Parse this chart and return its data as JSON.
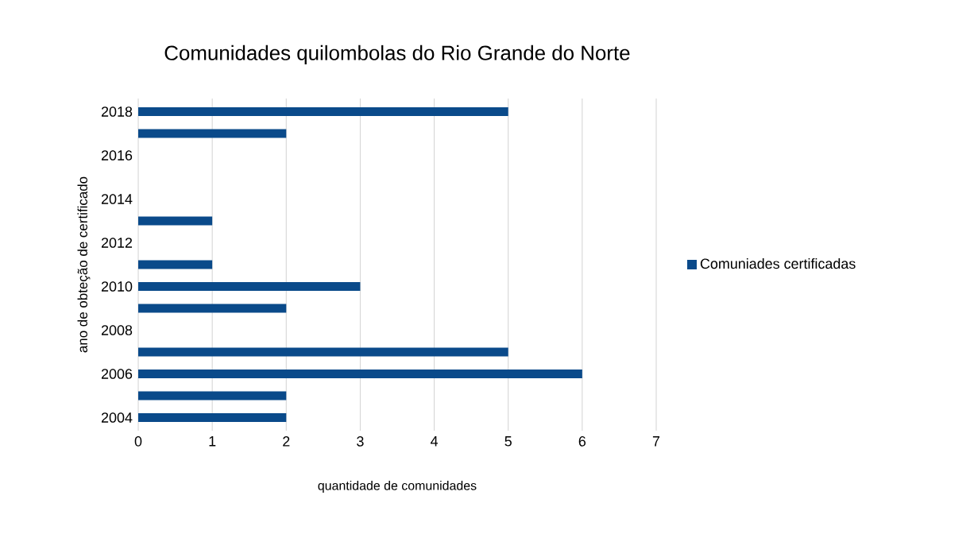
{
  "chart_data": {
    "type": "bar",
    "orientation": "horizontal",
    "title": "Comunidades quilombolas do Rio Grande do Norte",
    "xlabel": "quantidade de comunidades",
    "ylabel": "ano de obteção de certificado",
    "categories": [
      "2018",
      null,
      "2016",
      null,
      "2014",
      null,
      "2012",
      null,
      "2010",
      null,
      "2008",
      null,
      "2006",
      null,
      "2004"
    ],
    "series": [
      {
        "name": "Comuniades certificadas",
        "color": "#0a4a8a",
        "values": [
          5,
          2,
          null,
          null,
          null,
          1,
          null,
          1,
          3,
          2,
          null,
          5,
          6,
          2,
          2
        ]
      }
    ],
    "xlim": [
      0,
      7
    ],
    "xticks": [
      0,
      1,
      2,
      3,
      4,
      5,
      6,
      7
    ],
    "grid": "x",
    "legend": "right"
  }
}
